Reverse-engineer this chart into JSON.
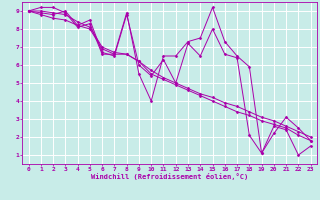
{
  "xlabel": "Windchill (Refroidissement éolien,°C)",
  "bg_color": "#c8ece8",
  "grid_color": "#ffffff",
  "line_color": "#aa00aa",
  "xlim": [
    -0.5,
    23.5
  ],
  "ylim": [
    0.5,
    9.5
  ],
  "xticks": [
    0,
    1,
    2,
    3,
    4,
    5,
    6,
    7,
    8,
    9,
    10,
    11,
    12,
    13,
    14,
    15,
    16,
    17,
    18,
    19,
    20,
    21,
    22,
    23
  ],
  "yticks": [
    1,
    2,
    3,
    4,
    5,
    6,
    7,
    8,
    9
  ],
  "lines": [
    [
      9.0,
      9.2,
      9.2,
      8.9,
      8.1,
      8.3,
      6.6,
      6.6,
      8.9,
      5.5,
      4.0,
      6.5,
      6.5,
      7.3,
      7.5,
      9.2,
      7.3,
      6.5,
      5.9,
      1.1,
      2.2,
      3.1,
      2.5,
      1.8
    ],
    [
      9.0,
      9.0,
      8.9,
      8.8,
      8.4,
      8.1,
      7.0,
      6.7,
      6.6,
      6.2,
      5.7,
      5.3,
      5.0,
      4.7,
      4.4,
      4.2,
      3.9,
      3.7,
      3.4,
      3.1,
      2.9,
      2.6,
      2.3,
      2.0
    ],
    [
      9.0,
      8.9,
      8.8,
      9.0,
      8.2,
      8.5,
      6.7,
      6.5,
      8.8,
      6.0,
      5.4,
      6.3,
      5.0,
      7.2,
      6.5,
      8.0,
      6.6,
      6.4,
      2.1,
      1.1,
      2.6,
      2.4,
      1.0,
      1.5
    ],
    [
      9.0,
      8.8,
      8.6,
      8.5,
      8.2,
      8.0,
      6.9,
      6.6,
      6.6,
      6.2,
      5.5,
      5.2,
      4.9,
      4.6,
      4.3,
      4.0,
      3.7,
      3.4,
      3.2,
      2.9,
      2.7,
      2.5,
      2.1,
      1.8
    ]
  ]
}
